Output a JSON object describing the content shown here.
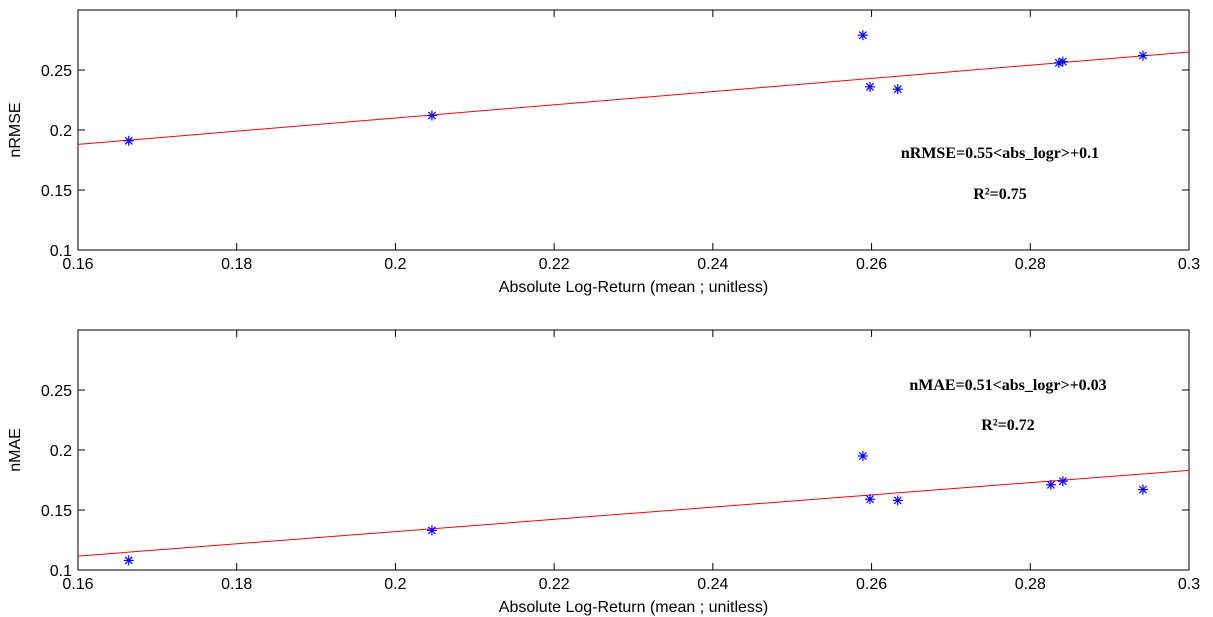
{
  "chart_data": [
    {
      "type": "scatter",
      "xlabel": "Absolute Log-Return (mean ; unitless)",
      "ylabel": "nRMSE",
      "xlim": [
        0.16,
        0.3
      ],
      "ylim": [
        0.1,
        0.3
      ],
      "xticks": [
        "0.16",
        "0.18",
        "0.2",
        "0.22",
        "0.24",
        "0.26",
        "0.28",
        "0.3"
      ],
      "yticks": [
        "0.1",
        "0.15",
        "0.2",
        "0.25"
      ],
      "grid": false,
      "points": {
        "x": [
          0.1664,
          0.2046,
          0.2589,
          0.2598,
          0.2633,
          0.2836,
          0.2841,
          0.2942
        ],
        "y": [
          0.191,
          0.212,
          0.279,
          0.236,
          0.234,
          0.256,
          0.257,
          0.262
        ]
      },
      "fit_line": {
        "slope": 0.55,
        "intercept": 0.1
      },
      "annotations": [
        "nRMSE=0.55<abs_logr>+0.1",
        "R²=0.75"
      ],
      "colors": {
        "points": "#0000ff",
        "fit_line": "#ff0000"
      }
    },
    {
      "type": "scatter",
      "xlabel": "Absolute Log-Return (mean ; unitless)",
      "ylabel": "nMAE",
      "xlim": [
        0.16,
        0.3
      ],
      "ylim": [
        0.1,
        0.3
      ],
      "xticks": [
        "0.16",
        "0.18",
        "0.2",
        "0.22",
        "0.24",
        "0.26",
        "0.28",
        "0.3"
      ],
      "yticks": [
        "0.1",
        "0.15",
        "0.2",
        "0.25"
      ],
      "grid": false,
      "points": {
        "x": [
          0.1664,
          0.2046,
          0.2589,
          0.2598,
          0.2633,
          0.2826,
          0.2841,
          0.2942
        ],
        "y": [
          0.108,
          0.133,
          0.195,
          0.159,
          0.158,
          0.171,
          0.174,
          0.167
        ]
      },
      "fit_line": {
        "slope": 0.51,
        "intercept": 0.03
      },
      "annotations": [
        "nMAE=0.51<abs_logr>+0.03",
        "R²=0.72"
      ],
      "colors": {
        "points": "#0000ff",
        "fit_line": "#ff0000"
      }
    }
  ]
}
